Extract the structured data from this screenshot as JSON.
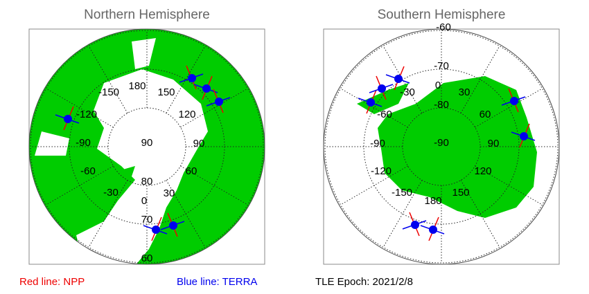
{
  "panels": [
    {
      "title": "Northern Hemisphere",
      "labels": [
        "180",
        "150",
        "120",
        "90",
        "60",
        "30",
        "0",
        "-30",
        "-60",
        "-90",
        "-120",
        "-150",
        "90",
        "80",
        "70",
        "60"
      ]
    },
    {
      "title": "Southern Hemisphere",
      "labels": [
        "-60",
        "-70",
        "-80",
        "-90",
        "0",
        "30",
        "60",
        "90",
        "120",
        "150",
        "180",
        "-150",
        "-120",
        "-90",
        "-60",
        "-30"
      ]
    }
  ],
  "legend": {
    "npp": "Red line: NPP",
    "terra": "Blue line: TERRA"
  },
  "epoch": "TLE Epoch: 2021/2/8"
}
